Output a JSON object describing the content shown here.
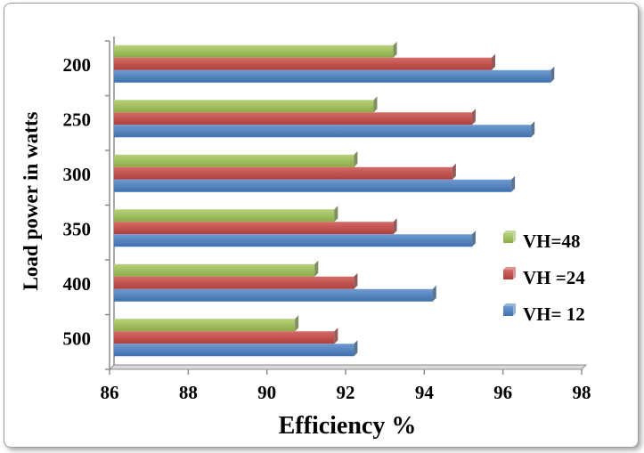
{
  "chart_data": {
    "type": "bar",
    "orientation": "horizontal",
    "categories": [
      "200",
      "250",
      "300",
      "350",
      "400",
      "500"
    ],
    "series": [
      {
        "name": "VH=48",
        "color": "#9bbb59",
        "values": [
          93.1,
          92.6,
          92.1,
          91.6,
          91.1,
          90.6
        ]
      },
      {
        "name": "VH =24",
        "color": "#c0504d",
        "values": [
          95.6,
          95.1,
          94.6,
          93.1,
          92.1,
          91.6
        ]
      },
      {
        "name": "VH= 12",
        "color": "#4f81bd",
        "values": [
          97.1,
          96.6,
          96.1,
          95.1,
          94.1,
          92.1
        ]
      }
    ],
    "xlabel": "Efficiency %",
    "ylabel": "Load power in watts",
    "xlim": [
      86,
      98
    ],
    "xticks": [
      "86",
      "88",
      "90",
      "92",
      "94",
      "96",
      "98"
    ],
    "grid": false,
    "legend_position": "right"
  }
}
